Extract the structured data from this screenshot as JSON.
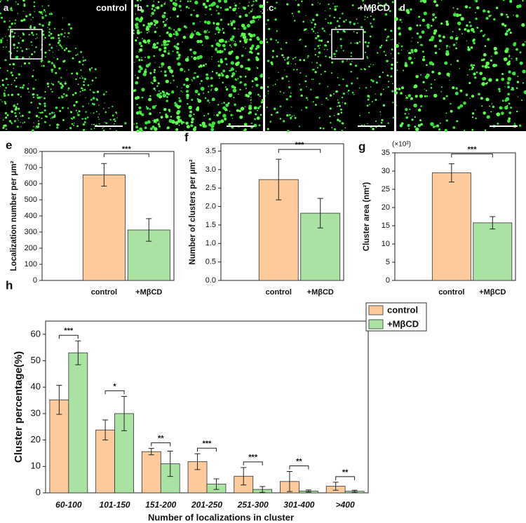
{
  "panels": [
    {
      "label": "a",
      "caption": "control"
    },
    {
      "label": "b"
    },
    {
      "label": "c",
      "caption": "+MβCD"
    },
    {
      "label": "d"
    }
  ],
  "chart_data": [
    {
      "type": "bar",
      "label": "e",
      "ylabel": "Localization number per μm²",
      "categories": [
        "control",
        "+MβCD"
      ],
      "values": [
        655,
        313
      ],
      "errors": [
        70,
        70
      ],
      "colors": [
        "#fdcb9b",
        "#a9e2a3"
      ],
      "ylim": [
        0,
        800
      ],
      "yticks": [
        0,
        100,
        200,
        300,
        400,
        500,
        600,
        700,
        800
      ],
      "significance": "***"
    },
    {
      "type": "bar",
      "label": "f",
      "ylabel": "Number of clusters per μm²",
      "categories": [
        "control",
        "+MβCD"
      ],
      "values": [
        2.73,
        1.82
      ],
      "errors": [
        0.55,
        0.4
      ],
      "colors": [
        "#fdcb9b",
        "#a9e2a3"
      ],
      "ylim": [
        0,
        3.7
      ],
      "yticks": [
        {
          "value": 0,
          "label": "0.0"
        },
        0.5,
        {
          "value": 1,
          "label": "1.0"
        },
        1.5,
        {
          "value": 2,
          "label": "2.0"
        },
        2.5,
        {
          "value": 3,
          "label": "3.0"
        },
        3.5
      ],
      "significance": "***"
    },
    {
      "type": "bar",
      "label": "g",
      "ylabel": "Cluster area (nm²)",
      "y_multiplier": "(×10³)",
      "categories": [
        "control",
        "+MβCD"
      ],
      "values": [
        29.5,
        15.8
      ],
      "errors": [
        2.5,
        1.7
      ],
      "colors": [
        "#fdcb9b",
        "#a9e2a3"
      ],
      "ylim": [
        0,
        35
      ],
      "yticks": [
        0,
        5,
        10,
        15,
        20,
        25,
        30,
        35
      ],
      "significance": "***"
    },
    {
      "type": "grouped_bar",
      "label": "h",
      "ylabel": "Cluster percentage(%)",
      "xlabel": "Number of localizations in cluster",
      "categories": [
        "60-100",
        "101-150",
        "151-200",
        "201-250",
        "251-300",
        "301-400",
        ">400"
      ],
      "series": [
        {
          "name": "control",
          "color": "#fdcb9b",
          "values": [
            35.2,
            23.8,
            15.6,
            11.8,
            6.3,
            4.3,
            2.5
          ],
          "errors": [
            5.5,
            3.8,
            1.2,
            3.0,
            3.3,
            3.8,
            1.5
          ]
        },
        {
          "name": "+MβCD",
          "color": "#a9e2a3",
          "values": [
            53,
            30,
            11,
            3.3,
            1.3,
            0.7,
            0.6
          ],
          "errors": [
            4.5,
            6.5,
            4.8,
            2.0,
            1.1,
            0.4,
            0.4
          ]
        }
      ],
      "significance": [
        "***",
        "*",
        "**",
        "***",
        "***",
        "**",
        "**"
      ],
      "ylim": [
        0,
        65
      ],
      "yticks": [
        0,
        10,
        20,
        30,
        40,
        50,
        60
      ],
      "legend": "upper right"
    }
  ]
}
